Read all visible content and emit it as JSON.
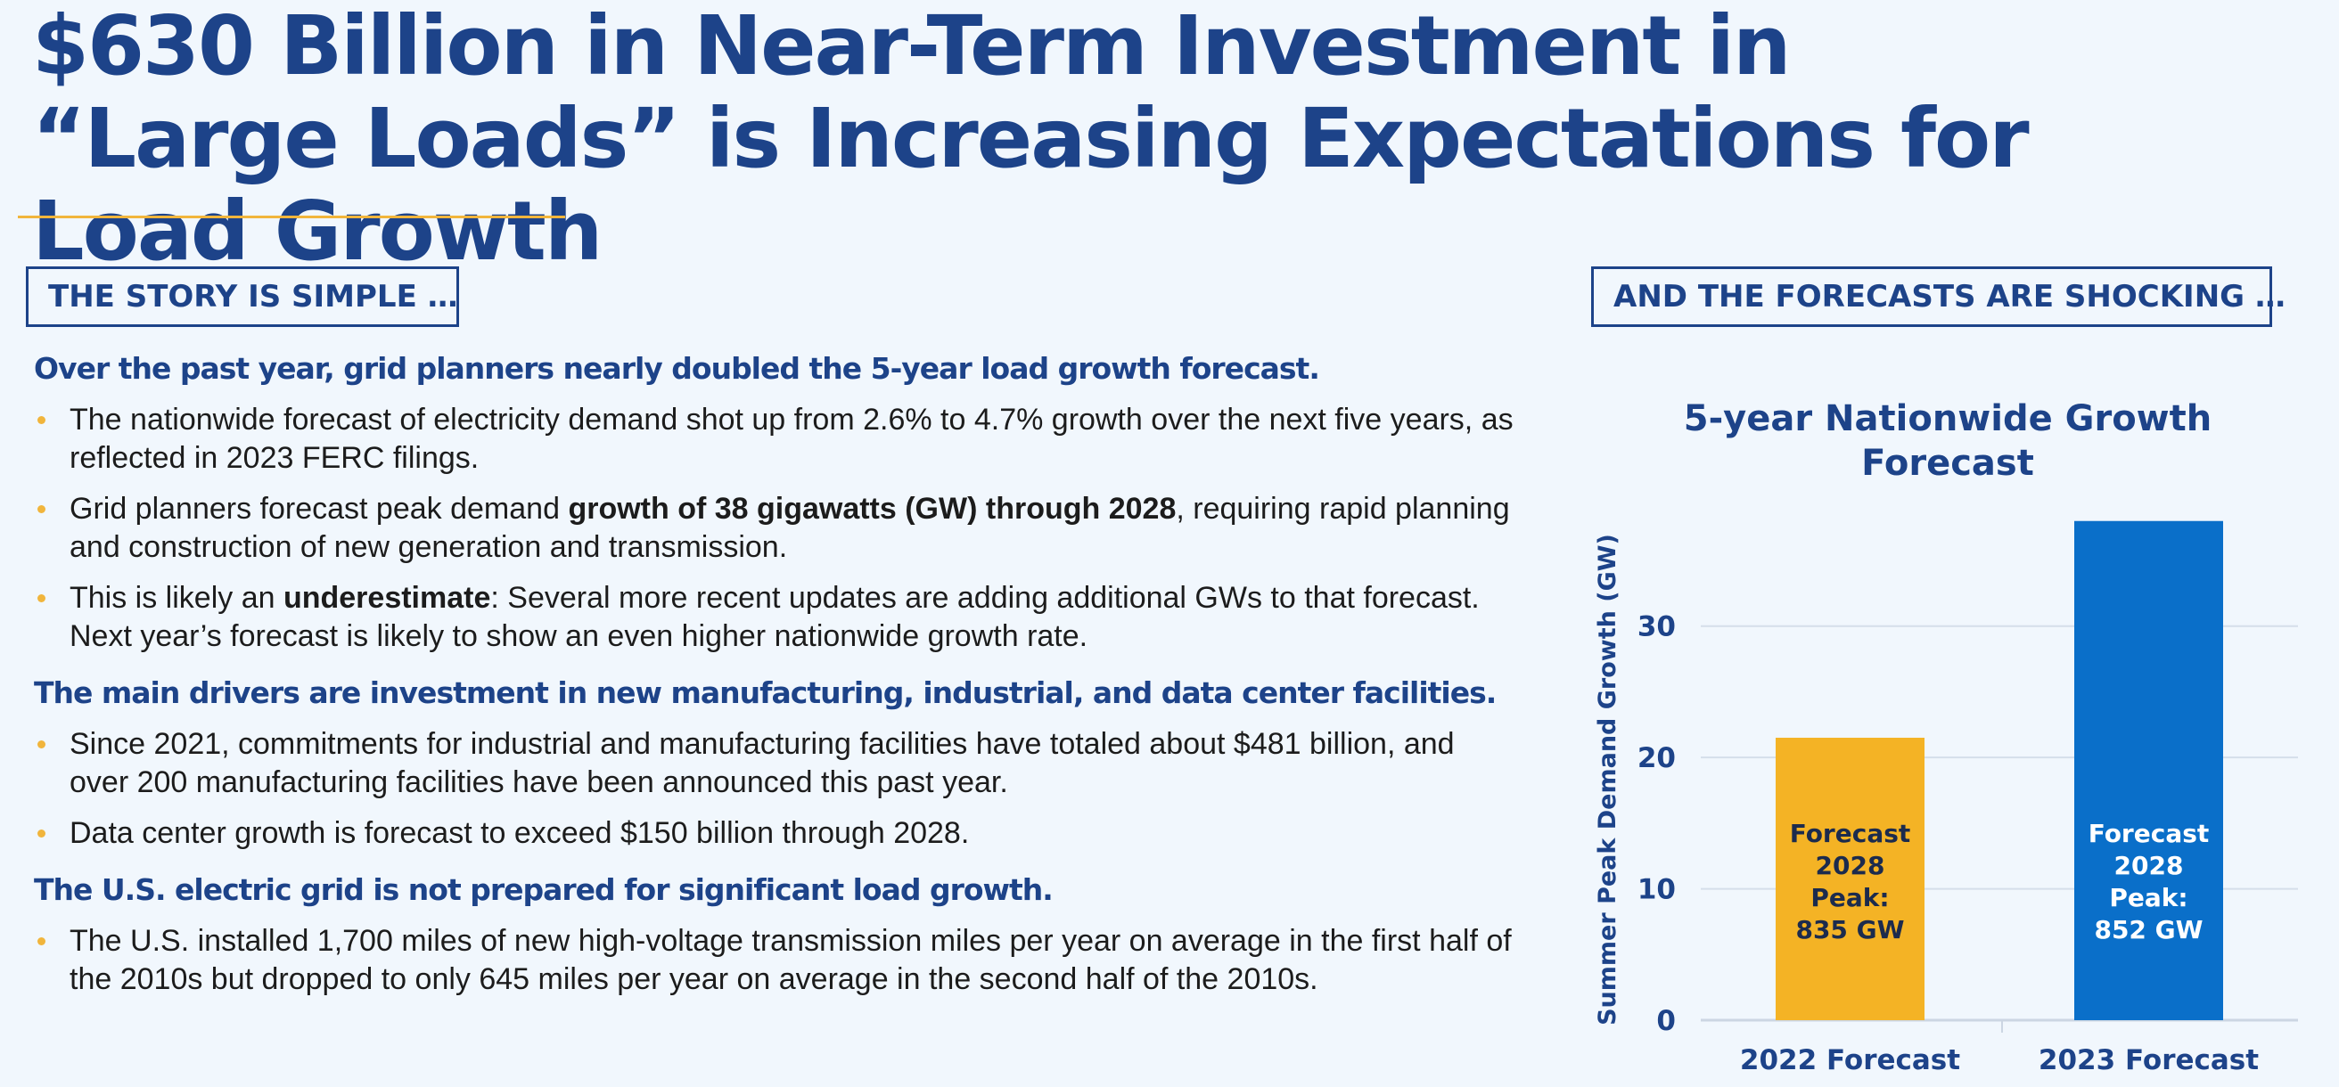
{
  "title": "$630 Billion in Near-Term Investment in “Large Loads” is Increasing Expectations for Load Growth",
  "left_section": {
    "label": "THE STORY IS SIMPLE …",
    "groups": [
      {
        "heading": "Over the past year, grid planners nearly doubled the 5-year load growth forecast.",
        "bullets": [
          {
            "parts": [
              {
                "t": "The nationwide forecast of electricity demand shot up from 2.6% to 4.7% growth over the next five years, as reflected in 2023 FERC filings.",
                "b": false
              }
            ]
          },
          {
            "parts": [
              {
                "t": "Grid planners forecast peak demand ",
                "b": false
              },
              {
                "t": "growth of 38 gigawatts (GW) through 2028",
                "b": true
              },
              {
                "t": ", requiring rapid planning and construction of new generation and transmission.",
                "b": false
              }
            ]
          },
          {
            "parts": [
              {
                "t": "This is likely an ",
                "b": false
              },
              {
                "t": "underestimate",
                "b": true
              },
              {
                "t": ": Several more recent updates are adding additional GWs to that forecast. Next year’s forecast is likely to show an even higher nationwide growth rate.",
                "b": false
              }
            ]
          }
        ]
      },
      {
        "heading": "The main drivers are investment in new manufacturing, industrial, and data center facilities.",
        "bullets": [
          {
            "parts": [
              {
                "t": "Since 2021, commitments for industrial and manufacturing facilities have totaled about $481 billion, and over 200 manufacturing facilities have been announced this past year.",
                "b": false
              }
            ]
          },
          {
            "parts": [
              {
                "t": "Data center growth is forecast to exceed $150 billion through 2028.",
                "b": false
              }
            ]
          }
        ]
      },
      {
        "heading": "The U.S. electric grid is not prepared for significant load growth.",
        "bullets": [
          {
            "parts": [
              {
                "t": "The U.S. installed 1,700 miles of new high-voltage transmission miles per year on average in the first half of the 2010s but dropped to only 645 miles per year on average in the second half of the 2010s.",
                "b": false
              }
            ]
          }
        ]
      }
    ]
  },
  "right_section": {
    "label": "AND THE FORECASTS ARE SHOCKING …"
  },
  "chart_data": {
    "type": "bar",
    "title": [
      "5-year Nationwide Growth",
      "Forecast"
    ],
    "ylabel": "Summer Peak Demand Growth (GW)",
    "categories": [
      "2022 Forecast",
      "2023 Forecast"
    ],
    "values": [
      21.5,
      38
    ],
    "bar_labels": [
      [
        "Forecast",
        "2028",
        "Peak:",
        "835 GW"
      ],
      [
        "Forecast",
        "2028",
        "Peak:",
        "852 GW"
      ]
    ],
    "colors": [
      "#f4b325",
      "#0a6fc9"
    ],
    "label_colors": [
      "#1c2b4d",
      "#ffffff"
    ],
    "yticks": [
      0,
      10,
      20,
      30
    ],
    "ylim": [
      0,
      39
    ],
    "grid": true
  }
}
